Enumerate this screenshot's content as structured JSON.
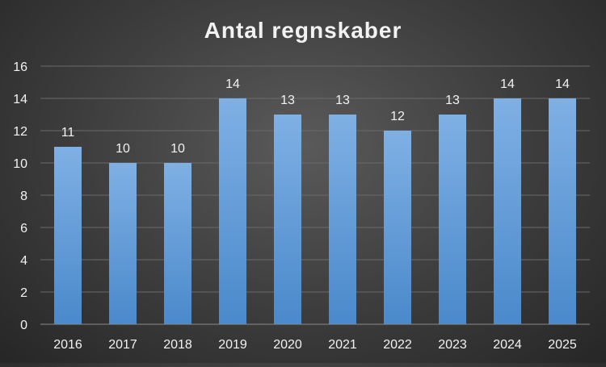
{
  "chart_data": {
    "type": "bar",
    "title": "Antal regnskaber",
    "xlabel": "",
    "ylabel": "",
    "categories": [
      "2016",
      "2017",
      "2018",
      "2019",
      "2020",
      "2021",
      "2022",
      "2023",
      "2024",
      "2025"
    ],
    "values": [
      11,
      10,
      10,
      14,
      13,
      13,
      12,
      13,
      14,
      14
    ],
    "ylim": [
      0,
      16
    ],
    "yticks": [
      "0",
      "2",
      "4",
      "6",
      "8",
      "10",
      "12",
      "14",
      "16"
    ],
    "data_labels": [
      "11",
      "10",
      "10",
      "14",
      "13",
      "13",
      "12",
      "13",
      "14",
      "14"
    ],
    "grid": true,
    "legend": "none",
    "colors": {
      "bar_top": "#7fb0e4",
      "bar_bottom": "#4a89cb",
      "text": "#f2f2f2",
      "grid": "#6a6a6a",
      "axis": "#8a8a8a"
    }
  }
}
